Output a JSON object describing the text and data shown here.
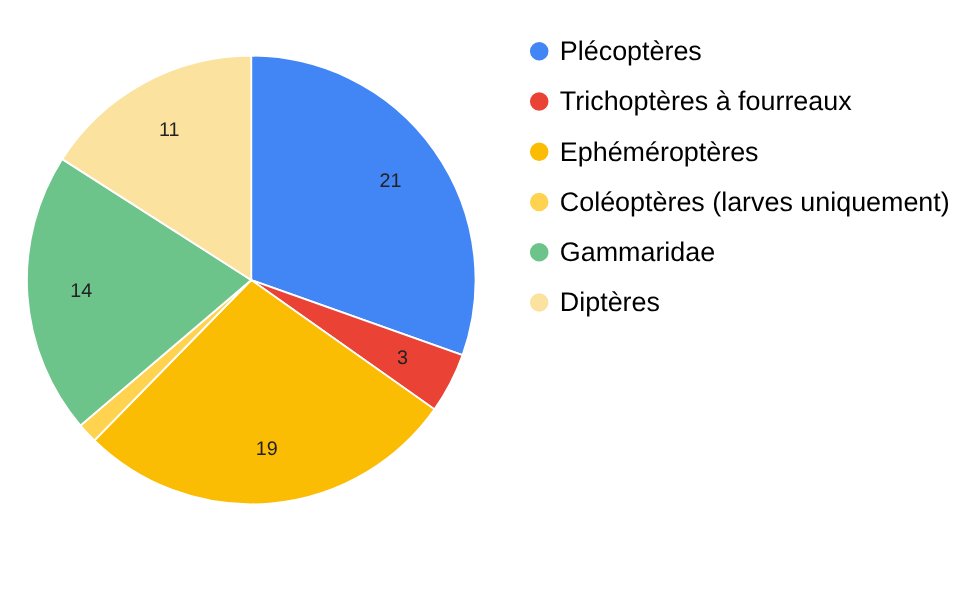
{
  "chart_data": {
    "type": "pie",
    "categories": [
      "Plécoptères",
      "Trichoptères à fourreaux",
      "Ephéméroptères",
      "Coléoptères (larves uniquement)",
      "Gammaridae",
      "Diptères"
    ],
    "values": [
      21,
      3,
      19,
      1,
      14,
      11
    ],
    "value_labels": [
      "21",
      "3",
      "19",
      null,
      "14",
      "11"
    ],
    "colors": [
      "#4285f4",
      "#ea4335",
      "#fbbc04",
      "#ffd34f",
      "#6dc48a",
      "#fbe29f"
    ],
    "legend": "right"
  }
}
